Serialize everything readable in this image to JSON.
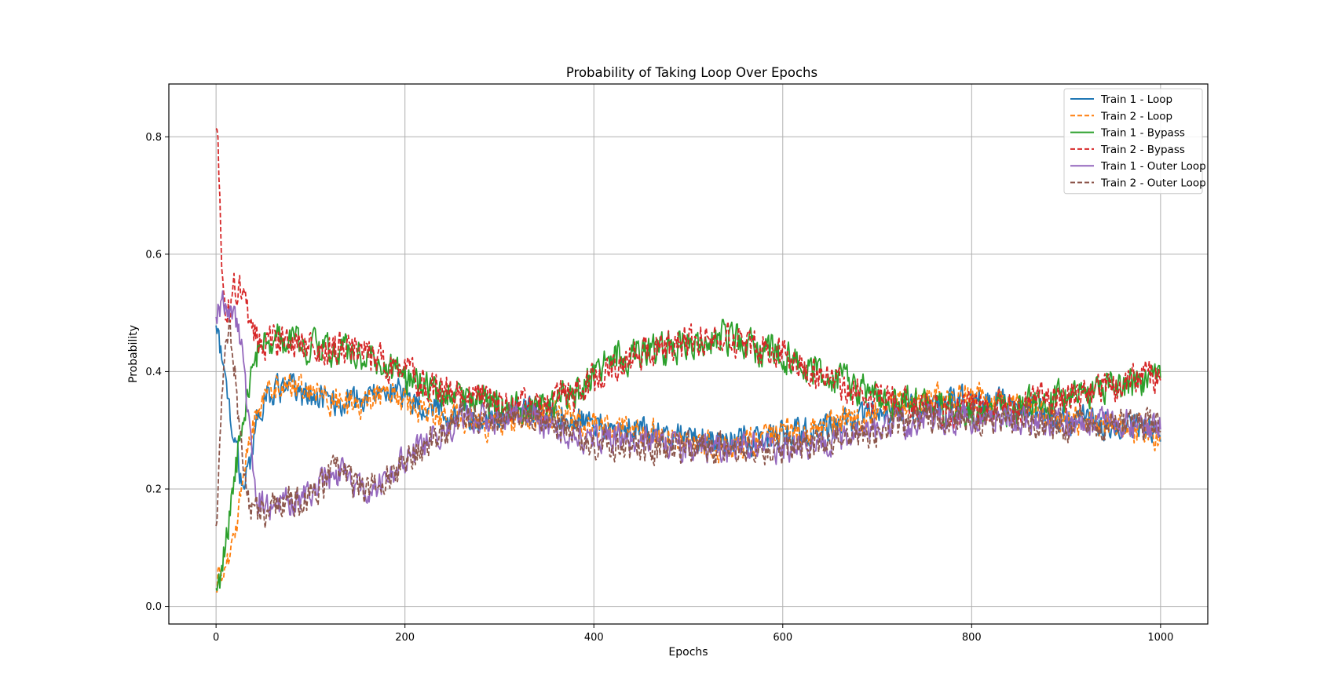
{
  "chart_data": {
    "type": "line",
    "title": "Probability of Taking Loop Over Epochs",
    "xlabel": "Epochs",
    "ylabel": "Probability",
    "xlim": [
      -50,
      1050
    ],
    "ylim": [
      -0.03,
      0.89
    ],
    "xticks": [
      0,
      200,
      400,
      600,
      800,
      1000
    ],
    "yticks": [
      0.0,
      0.2,
      0.4,
      0.6,
      0.8
    ],
    "xtick_labels": [
      "0",
      "200",
      "400",
      "600",
      "800",
      "1000"
    ],
    "ytick_labels": [
      "0.0",
      "0.2",
      "0.4",
      "0.6",
      "0.8"
    ],
    "grid": true,
    "legend_position": "top-right",
    "series": [
      {
        "name": "Train 1 - Loop",
        "color": "#1f77b4",
        "dash": "solid",
        "noise": 0.014,
        "x": [
          0,
          5,
          10,
          15,
          20,
          25,
          30,
          35,
          40,
          45,
          50,
          60,
          80,
          100,
          120,
          150,
          170,
          190,
          200,
          220,
          240,
          260,
          280,
          300,
          320,
          340,
          360,
          380,
          400,
          450,
          500,
          550,
          600,
          650,
          700,
          750,
          800,
          850,
          900,
          950,
          1000
        ],
        "y": [
          0.5,
          0.43,
          0.38,
          0.33,
          0.28,
          0.23,
          0.21,
          0.24,
          0.29,
          0.33,
          0.35,
          0.37,
          0.37,
          0.36,
          0.35,
          0.35,
          0.36,
          0.37,
          0.36,
          0.34,
          0.33,
          0.33,
          0.32,
          0.32,
          0.33,
          0.33,
          0.33,
          0.32,
          0.31,
          0.3,
          0.29,
          0.28,
          0.29,
          0.31,
          0.33,
          0.34,
          0.35,
          0.34,
          0.32,
          0.31,
          0.3
        ]
      },
      {
        "name": "Train 2 - Loop",
        "color": "#ff7f0e",
        "dash": "dashed",
        "noise": 0.014,
        "x": [
          0,
          5,
          10,
          15,
          20,
          25,
          30,
          40,
          50,
          60,
          80,
          100,
          120,
          150,
          170,
          190,
          200,
          220,
          240,
          260,
          280,
          300,
          320,
          340,
          360,
          380,
          400,
          450,
          500,
          550,
          600,
          650,
          700,
          750,
          800,
          850,
          900,
          950,
          1000
        ],
        "y": [
          0.04,
          0.06,
          0.07,
          0.08,
          0.11,
          0.17,
          0.24,
          0.31,
          0.36,
          0.38,
          0.38,
          0.37,
          0.35,
          0.34,
          0.36,
          0.36,
          0.35,
          0.33,
          0.32,
          0.32,
          0.31,
          0.31,
          0.32,
          0.33,
          0.33,
          0.32,
          0.31,
          0.3,
          0.28,
          0.27,
          0.29,
          0.31,
          0.33,
          0.35,
          0.36,
          0.34,
          0.32,
          0.31,
          0.29
        ]
      },
      {
        "name": "Train 1 - Bypass",
        "color": "#2ca02c",
        "dash": "solid",
        "noise": 0.016,
        "x": [
          0,
          5,
          10,
          15,
          20,
          25,
          30,
          35,
          40,
          45,
          50,
          60,
          80,
          100,
          120,
          150,
          170,
          190,
          200,
          220,
          240,
          260,
          280,
          300,
          320,
          340,
          360,
          380,
          400,
          420,
          450,
          500,
          540,
          570,
          600,
          620,
          650,
          700,
          750,
          800,
          850,
          900,
          950,
          1000
        ],
        "y": [
          0.01,
          0.05,
          0.1,
          0.16,
          0.22,
          0.28,
          0.32,
          0.37,
          0.41,
          0.44,
          0.45,
          0.46,
          0.46,
          0.44,
          0.44,
          0.43,
          0.42,
          0.4,
          0.39,
          0.37,
          0.36,
          0.35,
          0.35,
          0.34,
          0.34,
          0.34,
          0.35,
          0.36,
          0.4,
          0.42,
          0.43,
          0.45,
          0.46,
          0.44,
          0.43,
          0.41,
          0.39,
          0.36,
          0.34,
          0.33,
          0.34,
          0.36,
          0.37,
          0.39
        ]
      },
      {
        "name": "Train 2 - Bypass",
        "color": "#d62728",
        "dash": "dashed",
        "noise": 0.016,
        "x": [
          0,
          2,
          4,
          7,
          10,
          15,
          20,
          25,
          30,
          35,
          40,
          45,
          50,
          60,
          80,
          100,
          120,
          150,
          170,
          190,
          200,
          220,
          240,
          260,
          280,
          300,
          320,
          340,
          360,
          380,
          400,
          420,
          450,
          500,
          540,
          570,
          600,
          620,
          650,
          700,
          750,
          800,
          850,
          900,
          950,
          1000
        ],
        "y": [
          0.82,
          0.8,
          0.68,
          0.56,
          0.5,
          0.51,
          0.55,
          0.54,
          0.52,
          0.49,
          0.47,
          0.46,
          0.45,
          0.45,
          0.45,
          0.44,
          0.44,
          0.44,
          0.42,
          0.41,
          0.4,
          0.38,
          0.37,
          0.36,
          0.36,
          0.35,
          0.34,
          0.34,
          0.35,
          0.36,
          0.39,
          0.41,
          0.43,
          0.45,
          0.46,
          0.44,
          0.43,
          0.41,
          0.38,
          0.36,
          0.34,
          0.33,
          0.34,
          0.36,
          0.37,
          0.4
        ]
      },
      {
        "name": "Train 1 - Outer Loop",
        "color": "#9467bd",
        "dash": "solid",
        "noise": 0.014,
        "x": [
          0,
          3,
          6,
          10,
          15,
          20,
          25,
          30,
          35,
          40,
          45,
          50,
          60,
          80,
          100,
          120,
          130,
          150,
          170,
          190,
          200,
          220,
          240,
          260,
          280,
          300,
          320,
          340,
          360,
          380,
          400,
          450,
          500,
          550,
          600,
          650,
          700,
          750,
          800,
          850,
          900,
          950,
          1000
        ],
        "y": [
          0.5,
          0.5,
          0.51,
          0.52,
          0.5,
          0.5,
          0.46,
          0.4,
          0.3,
          0.22,
          0.18,
          0.17,
          0.17,
          0.18,
          0.19,
          0.22,
          0.23,
          0.2,
          0.21,
          0.23,
          0.25,
          0.27,
          0.3,
          0.32,
          0.32,
          0.32,
          0.33,
          0.32,
          0.3,
          0.29,
          0.29,
          0.28,
          0.27,
          0.27,
          0.27,
          0.28,
          0.3,
          0.32,
          0.32,
          0.32,
          0.31,
          0.31,
          0.31
        ]
      },
      {
        "name": "Train 2 - Outer Loop",
        "color": "#8c564b",
        "dash": "dashed",
        "noise": 0.015,
        "x": [
          0,
          3,
          6,
          10,
          15,
          20,
          25,
          30,
          35,
          40,
          45,
          50,
          60,
          80,
          100,
          120,
          130,
          150,
          170,
          190,
          200,
          220,
          240,
          260,
          280,
          300,
          320,
          340,
          360,
          380,
          400,
          450,
          500,
          550,
          600,
          650,
          700,
          750,
          800,
          850,
          900,
          950,
          1000
        ],
        "y": [
          0.13,
          0.22,
          0.38,
          0.45,
          0.48,
          0.4,
          0.3,
          0.22,
          0.18,
          0.16,
          0.16,
          0.16,
          0.17,
          0.18,
          0.19,
          0.22,
          0.23,
          0.2,
          0.21,
          0.23,
          0.25,
          0.27,
          0.3,
          0.32,
          0.32,
          0.32,
          0.32,
          0.32,
          0.31,
          0.29,
          0.28,
          0.27,
          0.27,
          0.27,
          0.27,
          0.28,
          0.3,
          0.32,
          0.32,
          0.32,
          0.31,
          0.31,
          0.31
        ]
      }
    ]
  }
}
